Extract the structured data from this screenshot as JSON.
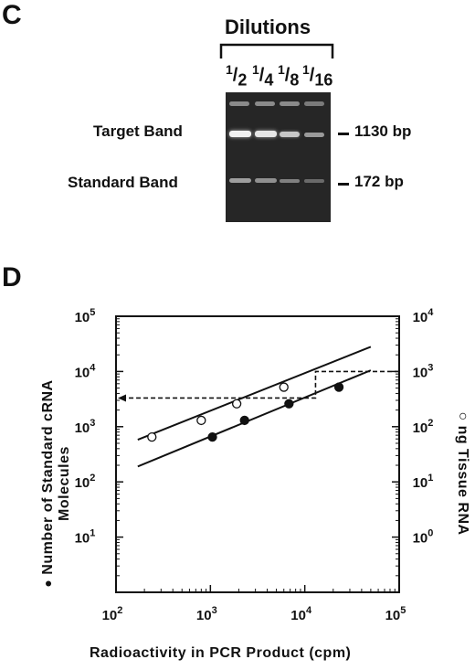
{
  "panel_c": {
    "letter": "C",
    "group_title": "Dilutions",
    "dilutions": [
      {
        "num": "1",
        "den": "2"
      },
      {
        "num": "1",
        "den": "4"
      },
      {
        "num": "1",
        "den": "8"
      },
      {
        "num": "1",
        "den": "16"
      }
    ],
    "row_labels": [
      "Target Band",
      "Standard Band"
    ],
    "markers": [
      "1130 bp",
      "172 bp"
    ]
  },
  "panel_d": {
    "letter": "D",
    "left_axis_title_line1": "Number of Standard cRNA",
    "left_axis_title_line2": "Molecules",
    "left_marker": "●",
    "right_axis_title": "ng Tissue RNA",
    "right_marker": "○",
    "x_axis_title": "Radioactivity in PCR Product (cpm)"
  },
  "chart_data": {
    "type": "scatter",
    "x_scale": "log",
    "y_scale": "log",
    "xlim": [
      100,
      100000
    ],
    "ylim_left": [
      1,
      100000
    ],
    "ylim_right": [
      0.1,
      10000
    ],
    "x_ticks": [
      {
        "base": "10",
        "exp": "2"
      },
      {
        "base": "10",
        "exp": "3"
      },
      {
        "base": "10",
        "exp": "4"
      },
      {
        "base": "10",
        "exp": "5"
      }
    ],
    "y_ticks_left": [
      {
        "base": "10",
        "exp": "1"
      },
      {
        "base": "10",
        "exp": "2"
      },
      {
        "base": "10",
        "exp": "3"
      },
      {
        "base": "10",
        "exp": "4"
      },
      {
        "base": "10",
        "exp": "5"
      }
    ],
    "y_ticks_right": [
      {
        "base": "10",
        "exp": "0"
      },
      {
        "base": "10",
        "exp": "1"
      },
      {
        "base": "10",
        "exp": "2"
      },
      {
        "base": "10",
        "exp": "3"
      },
      {
        "base": "10",
        "exp": "4"
      }
    ],
    "series": [
      {
        "marker": "filled",
        "axis": "left",
        "x": [
          1050,
          2300,
          6800,
          23000
        ],
        "y": [
          650,
          1300,
          2600,
          5200
        ],
        "fit": {
          "x": [
            170,
            50000
          ],
          "y": [
            190,
            10500
          ]
        }
      },
      {
        "marker": "open",
        "axis": "right",
        "x": [
          240,
          800,
          1900,
          6000
        ],
        "y": [
          65,
          130,
          260,
          520
        ],
        "fit": {
          "x": [
            170,
            50000
          ],
          "y": [
            58,
            2800
          ]
        }
      }
    ],
    "guide": {
      "x": 13000,
      "y_right": 1000,
      "result_y_left": 3300
    }
  }
}
